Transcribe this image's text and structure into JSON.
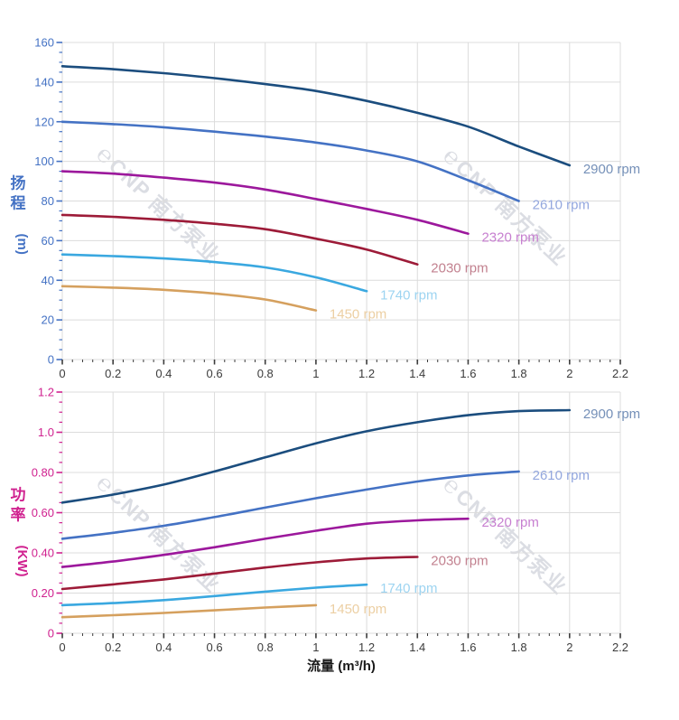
{
  "page": {
    "background": "#ffffff"
  },
  "watermark": {
    "logo": "℮",
    "text": "CNP 南方泵业",
    "color": "#b9bdc9",
    "opacity": 0.5
  },
  "chart_data": [
    {
      "id": "head",
      "type": "line",
      "title": "",
      "xlabel": "流量 (m³/h)",
      "ylabel": "扬程 (m)",
      "ylabel_stack": [
        "扬",
        "程"
      ],
      "ylabel_unit": "(m)",
      "axis_label_color": "#4472c4",
      "grid": true,
      "legend_position": "end-of-line",
      "xlim": [
        0,
        2.2
      ],
      "ylim": [
        0,
        160
      ],
      "x_ticks": [
        0,
        0.2,
        0.4,
        0.6,
        0.8,
        1,
        1.2,
        1.4,
        1.6,
        1.8,
        2,
        2.2
      ],
      "x_tick_labels": [
        "0",
        "0.2",
        "0.4",
        "0.6",
        "0.8",
        "1",
        "1.2",
        "1.4",
        "1.6",
        "1.8",
        "2",
        "2.2"
      ],
      "x_minor_step": 0.04,
      "y_ticks": [
        0,
        20,
        40,
        60,
        80,
        100,
        120,
        140,
        160
      ],
      "y_tick_labels": [
        "0",
        "20",
        "40",
        "60",
        "80",
        "100",
        "120",
        "140",
        "160"
      ],
      "y_minor_step": 5,
      "series": [
        {
          "name": "2900 rpm",
          "color": "#1b4d7e",
          "label_color": "#7590b8",
          "x": [
            0,
            0.2,
            0.4,
            0.6,
            0.8,
            1,
            1.2,
            1.4,
            1.6,
            1.8,
            2
          ],
          "y": [
            148,
            146.5,
            144.5,
            142,
            139,
            135.5,
            130.5,
            124.5,
            117.5,
            107.5,
            98
          ]
        },
        {
          "name": "2610 rpm",
          "color": "#4472c4",
          "label_color": "#93a7de",
          "x": [
            0,
            0.2,
            0.4,
            0.6,
            0.8,
            1,
            1.2,
            1.4,
            1.6,
            1.8
          ],
          "y": [
            120,
            118.8,
            117.2,
            115,
            112.5,
            109.5,
            105.5,
            100,
            90.5,
            80
          ]
        },
        {
          "name": "2320 rpm",
          "color": "#9c189c",
          "label_color": "#c77fd0",
          "x": [
            0,
            0.2,
            0.4,
            0.6,
            0.8,
            1,
            1.2,
            1.4,
            1.6
          ],
          "y": [
            95,
            93.8,
            91.8,
            89.3,
            85.8,
            81,
            76,
            70.5,
            63.5
          ]
        },
        {
          "name": "2030 rpm",
          "color": "#9d1b38",
          "label_color": "#c2818f",
          "x": [
            0,
            0.2,
            0.4,
            0.6,
            0.8,
            1,
            1.2,
            1.4
          ],
          "y": [
            73,
            72,
            70.5,
            68.5,
            65.8,
            61,
            55.5,
            48
          ]
        },
        {
          "name": "1740 rpm",
          "color": "#3aa8e0",
          "label_color": "#9dd4f1",
          "x": [
            0,
            0.2,
            0.4,
            0.6,
            0.8,
            1,
            1.2
          ],
          "y": [
            53,
            52.2,
            51,
            49.2,
            46.5,
            41.5,
            34.5
          ]
        },
        {
          "name": "1450 rpm",
          "color": "#d5a05e",
          "label_color": "#eccfa3",
          "x": [
            0,
            0.2,
            0.4,
            0.6,
            0.8,
            1
          ],
          "y": [
            37,
            36.3,
            35.2,
            33.3,
            30.3,
            24.8
          ]
        }
      ]
    },
    {
      "id": "power",
      "type": "line",
      "title": "",
      "xlabel": "流量 (m³/h)",
      "ylabel": "功率 (KW)",
      "ylabel_stack": [
        "功",
        "率"
      ],
      "ylabel_unit": "(KW)",
      "axis_label_color": "#d0218f",
      "grid": true,
      "legend_position": "end-of-line",
      "xlim": [
        0,
        2.2
      ],
      "ylim": [
        0,
        1.2
      ],
      "x_ticks": [
        0,
        0.2,
        0.4,
        0.6,
        0.8,
        1,
        1.2,
        1.4,
        1.6,
        1.8,
        2,
        2.2
      ],
      "x_tick_labels": [
        "0",
        "0.2",
        "0.4",
        "0.6",
        "0.8",
        "1",
        "1.2",
        "1.4",
        "1.6",
        "1.8",
        "2",
        "2.2"
      ],
      "x_minor_step": 0.04,
      "y_ticks": [
        0,
        0.2,
        0.4,
        0.6,
        0.8,
        1.0,
        1.2
      ],
      "y_tick_labels": [
        "0",
        "0.20",
        "0.40",
        "0.60",
        "0.80",
        "1.0",
        "1.2"
      ],
      "y_minor_step": 0.05,
      "series": [
        {
          "name": "2900 rpm",
          "color": "#1b4d7e",
          "label_color": "#7590b8",
          "x": [
            0,
            0.2,
            0.4,
            0.6,
            0.8,
            1,
            1.2,
            1.4,
            1.6,
            1.8,
            2
          ],
          "y": [
            0.65,
            0.69,
            0.74,
            0.805,
            0.875,
            0.945,
            1.005,
            1.05,
            1.085,
            1.105,
            1.11
          ]
        },
        {
          "name": "2610 rpm",
          "color": "#4472c4",
          "label_color": "#93a7de",
          "x": [
            0,
            0.2,
            0.4,
            0.6,
            0.8,
            1,
            1.2,
            1.4,
            1.6,
            1.8
          ],
          "y": [
            0.47,
            0.5,
            0.535,
            0.578,
            0.625,
            0.672,
            0.715,
            0.755,
            0.785,
            0.805
          ]
        },
        {
          "name": "2320 rpm",
          "color": "#9c189c",
          "label_color": "#c77fd0",
          "x": [
            0,
            0.2,
            0.4,
            0.6,
            0.8,
            1,
            1.2,
            1.4,
            1.6
          ],
          "y": [
            0.33,
            0.357,
            0.39,
            0.428,
            0.47,
            0.51,
            0.545,
            0.562,
            0.57
          ]
        },
        {
          "name": "2030 rpm",
          "color": "#9d1b38",
          "label_color": "#c2818f",
          "x": [
            0,
            0.2,
            0.4,
            0.6,
            0.8,
            1,
            1.2,
            1.4
          ],
          "y": [
            0.22,
            0.243,
            0.268,
            0.297,
            0.327,
            0.353,
            0.372,
            0.38
          ]
        },
        {
          "name": "1740 rpm",
          "color": "#3aa8e0",
          "label_color": "#9dd4f1",
          "x": [
            0,
            0.2,
            0.4,
            0.6,
            0.8,
            1,
            1.2
          ],
          "y": [
            0.14,
            0.15,
            0.165,
            0.185,
            0.207,
            0.227,
            0.242
          ]
        },
        {
          "name": "1450 rpm",
          "color": "#d5a05e",
          "label_color": "#eccfa3",
          "x": [
            0,
            0.2,
            0.4,
            0.6,
            0.8,
            1
          ],
          "y": [
            0.08,
            0.09,
            0.101,
            0.114,
            0.128,
            0.14
          ]
        }
      ]
    }
  ]
}
